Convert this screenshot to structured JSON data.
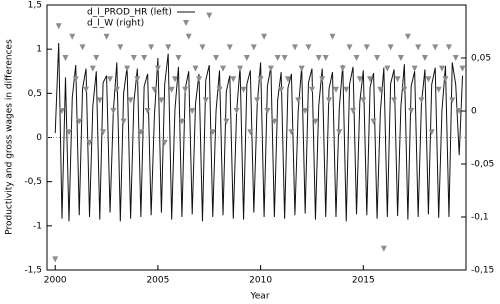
{
  "chart_data": {
    "type": "line",
    "x_label": "Year",
    "y_label": "Productivity and gross wages in differences",
    "xlim": [
      1999.6,
      2020
    ],
    "xticks": [
      2000,
      2005,
      2010,
      2015
    ],
    "ylim": [
      -1.5,
      1.5
    ],
    "yticks": [
      {
        "value": -1.5,
        "label": "-1,5"
      },
      -1,
      {
        "value": -0.5,
        "label": "-0,5"
      },
      0,
      {
        "value": 0.5,
        "label": "0,5"
      },
      1,
      {
        "value": 1.5,
        "label": "1,5"
      }
    ],
    "y2lim": [
      -0.15,
      0.1
    ],
    "y2ticks": [
      {
        "value": -0.15,
        "label": "-0,15"
      },
      {
        "value": -0.1,
        "label": "-0,1"
      },
      {
        "value": -0.05,
        "label": "-0,05"
      },
      0,
      {
        "value": 0.05,
        "label": "0,05"
      }
    ],
    "zero_line": true,
    "legend": "upper left",
    "x": [
      2000,
      2000.17,
      2000.33,
      2000.5,
      2000.67,
      2000.83,
      2001,
      2001.17,
      2001.33,
      2001.5,
      2001.67,
      2001.83,
      2002,
      2002.17,
      2002.33,
      2002.5,
      2002.67,
      2002.83,
      2003,
      2003.17,
      2003.33,
      2003.5,
      2003.67,
      2003.83,
      2004,
      2004.17,
      2004.33,
      2004.5,
      2004.67,
      2004.83,
      2005,
      2005.17,
      2005.33,
      2005.5,
      2005.67,
      2005.83,
      2006,
      2006.17,
      2006.33,
      2006.5,
      2006.67,
      2006.83,
      2007,
      2007.17,
      2007.33,
      2007.5,
      2007.67,
      2007.83,
      2008,
      2008.17,
      2008.33,
      2008.5,
      2008.67,
      2008.83,
      2009,
      2009.17,
      2009.33,
      2009.5,
      2009.67,
      2009.83,
      2010,
      2010.17,
      2010.33,
      2010.5,
      2010.67,
      2010.83,
      2011,
      2011.17,
      2011.33,
      2011.5,
      2011.67,
      2011.83,
      2012,
      2012.17,
      2012.33,
      2012.5,
      2012.67,
      2012.83,
      2013,
      2013.17,
      2013.33,
      2013.5,
      2013.67,
      2013.83,
      2014,
      2014.17,
      2014.33,
      2014.5,
      2014.67,
      2014.83,
      2015,
      2015.17,
      2015.33,
      2015.5,
      2015.67,
      2015.83,
      2016,
      2016.17,
      2016.33,
      2016.5,
      2016.67,
      2016.83,
      2017,
      2017.17,
      2017.33,
      2017.5,
      2017.67,
      2017.83,
      2018,
      2018.17,
      2018.33,
      2018.5,
      2018.67,
      2018.83,
      2019,
      2019.17,
      2019.33,
      2019.5,
      2019.67,
      2019.83
    ],
    "series": [
      {
        "name": "d_l_PROD_HR  (left)",
        "type": "line",
        "color": "#111111",
        "values": [
          0.05,
          1.07,
          -0.92,
          0.68,
          -0.95,
          0.45,
          0.82,
          -0.88,
          0.55,
          0.78,
          -0.9,
          0.35,
          0.75,
          -0.93,
          0.62,
          0.7,
          -0.85,
          0.3,
          0.85,
          -0.95,
          0.5,
          0.8,
          -0.92,
          0.4,
          0.78,
          -0.9,
          0.58,
          0.72,
          -0.88,
          0.25,
          0.9,
          -0.85,
          0.6,
          0.95,
          -0.93,
          0.32,
          0.8,
          -0.9,
          0.55,
          0.75,
          -0.87,
          0.38,
          0.72,
          -0.95,
          0.65,
          0.82,
          -0.9,
          0.3,
          0.76,
          -0.88,
          0.52,
          0.7,
          -0.92,
          0.28,
          0.8,
          -0.93,
          0.6,
          0.76,
          -0.85,
          0.35,
          0.85,
          -0.9,
          0.58,
          0.8,
          -0.9,
          0.42,
          0.74,
          -0.92,
          0.56,
          0.72,
          -0.88,
          0.3,
          0.8,
          -0.86,
          0.62,
          0.78,
          -0.93,
          0.36,
          0.78,
          -0.9,
          0.55,
          0.74,
          -0.9,
          0.33,
          0.82,
          -0.95,
          0.6,
          0.8,
          -0.87,
          0.4,
          0.76,
          -0.88,
          0.57,
          0.73,
          -0.92,
          0.29,
          0.79,
          -0.9,
          0.61,
          0.77,
          -0.89,
          0.35,
          0.83,
          -0.93,
          0.58,
          0.75,
          -0.9,
          0.38,
          0.77,
          -0.87,
          0.6,
          0.79,
          -0.91,
          0.31,
          0.81,
          -0.9,
          0.85,
          0.6,
          -0.2,
          0.7
        ]
      },
      {
        "name": "d_l_W  (right)",
        "type": "scatter",
        "axis": "y2",
        "color": "#8c8c8c",
        "values": [
          -0.14,
          0.08,
          0.0,
          0.05,
          -0.02,
          0.07,
          0.03,
          -0.01,
          0.06,
          0.02,
          -0.03,
          0.04,
          0.05,
          0.01,
          -0.02,
          0.07,
          0.03,
          0.0,
          0.02,
          0.06,
          -0.01,
          0.04,
          0.01,
          0.05,
          0.03,
          -0.02,
          0.05,
          0.0,
          0.06,
          0.02,
          0.04,
          0.01,
          -0.03,
          0.06,
          0.02,
          0.03,
          0.05,
          -0.01,
          0.02,
          0.07,
          0.0,
          0.04,
          0.03,
          0.06,
          0.01,
          0.09,
          -0.02,
          0.05,
          0.02,
          0.04,
          -0.01,
          0.06,
          0.03,
          0.0,
          0.04,
          0.02,
          0.05,
          -0.02,
          0.06,
          0.01,
          0.03,
          0.07,
          0.0,
          0.04,
          -0.01,
          0.05,
          0.02,
          0.05,
          0.03,
          -0.02,
          0.06,
          0.01,
          0.04,
          0.0,
          0.06,
          0.02,
          -0.01,
          0.05,
          0.03,
          0.05,
          0.01,
          0.07,
          0.02,
          -0.02,
          0.04,
          0.02,
          0.06,
          0.0,
          0.05,
          0.03,
          0.01,
          0.06,
          0.03,
          -0.01,
          0.05,
          0.02,
          -0.13,
          0.04,
          0.06,
          0.01,
          0.03,
          0.05,
          0.02,
          0.07,
          0.0,
          0.04,
          0.06,
          0.01,
          0.05,
          0.03,
          -0.02,
          0.06,
          0.02,
          0.04,
          0.03,
          0.06,
          0.01,
          0.05,
          0.0,
          0.04
        ]
      }
    ]
  }
}
